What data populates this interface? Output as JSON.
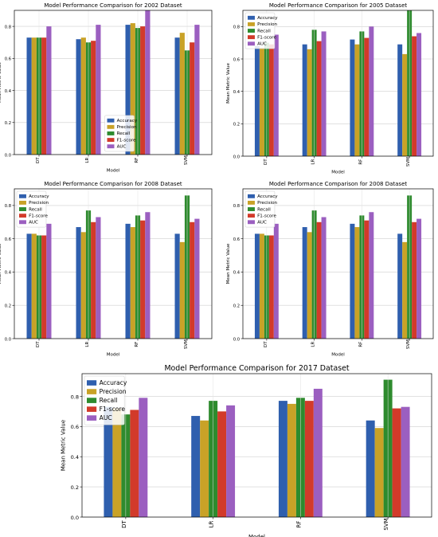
{
  "colors": {
    "Accuracy": "#2f5fae",
    "Precision": "#c9a227",
    "Recall": "#2e8b2e",
    "F1-score": "#d23a2a",
    "AUC": "#9b5fc0"
  },
  "chart_data": [
    {
      "type": "bar",
      "title": "Model Performance Comparison for 2002 Dataset",
      "xlabel": "Model",
      "ylabel": "Mean Metric Value",
      "categories": [
        "DT",
        "LR",
        "RF",
        "SVM"
      ],
      "series": [
        {
          "name": "Accuracy",
          "values": [
            0.73,
            0.72,
            0.81,
            0.73
          ]
        },
        {
          "name": "Precision",
          "values": [
            0.73,
            0.73,
            0.82,
            0.76
          ]
        },
        {
          "name": "Recall",
          "values": [
            0.73,
            0.7,
            0.79,
            0.65
          ]
        },
        {
          "name": "F1-score",
          "values": [
            0.73,
            0.71,
            0.8,
            0.7
          ]
        },
        {
          "name": "AUC",
          "values": [
            0.8,
            0.81,
            0.9,
            0.81
          ]
        }
      ],
      "ylim": [
        0,
        0.9
      ],
      "yticks": [
        0.0,
        0.2,
        0.4,
        0.6,
        0.8
      ],
      "legend": "bottom-center",
      "grid": true
    },
    {
      "type": "bar",
      "title": "Model Performance Comparison for 2005 Dataset",
      "xlabel": "Model",
      "ylabel": "Mean Metric Value",
      "categories": [
        "DT",
        "LR",
        "RF",
        "SVM"
      ],
      "series": [
        {
          "name": "Accuracy",
          "values": [
            0.68,
            0.69,
            0.72,
            0.69
          ]
        },
        {
          "name": "Precision",
          "values": [
            0.67,
            0.66,
            0.69,
            0.63
          ]
        },
        {
          "name": "Recall",
          "values": [
            0.7,
            0.78,
            0.77,
            0.9
          ]
        },
        {
          "name": "F1-score",
          "values": [
            0.69,
            0.71,
            0.73,
            0.74
          ]
        },
        {
          "name": "AUC",
          "values": [
            0.75,
            0.77,
            0.8,
            0.76
          ]
        }
      ],
      "ylim": [
        0,
        0.9
      ],
      "yticks": [
        0.0,
        0.2,
        0.4,
        0.6,
        0.8
      ],
      "legend": "top-left",
      "grid": true
    },
    {
      "type": "bar",
      "title": "Model Performance Comparison for 2008 Dataset",
      "xlabel": "Model",
      "ylabel": "Mean Metric Value",
      "categories": [
        "DT",
        "LR",
        "RF",
        "SVM"
      ],
      "series": [
        {
          "name": "Accuracy",
          "values": [
            0.63,
            0.67,
            0.69,
            0.63
          ]
        },
        {
          "name": "Precision",
          "values": [
            0.63,
            0.64,
            0.67,
            0.58
          ]
        },
        {
          "name": "Recall",
          "values": [
            0.62,
            0.77,
            0.74,
            0.86
          ]
        },
        {
          "name": "F1-score",
          "values": [
            0.62,
            0.7,
            0.71,
            0.7
          ]
        },
        {
          "name": "AUC",
          "values": [
            0.69,
            0.73,
            0.76,
            0.72
          ]
        }
      ],
      "ylim": [
        0,
        0.9
      ],
      "yticks": [
        0.0,
        0.2,
        0.4,
        0.6,
        0.8
      ],
      "legend": "top-left",
      "grid": true
    },
    {
      "type": "bar",
      "title": "Model Performance Comparison for 2008 Dataset",
      "xlabel": "Model",
      "ylabel": "Mean Metric Value",
      "categories": [
        "DT",
        "LR",
        "RF",
        "SVM"
      ],
      "series": [
        {
          "name": "Accuracy",
          "values": [
            0.63,
            0.67,
            0.69,
            0.63
          ]
        },
        {
          "name": "Precision",
          "values": [
            0.63,
            0.64,
            0.67,
            0.58
          ]
        },
        {
          "name": "Recall",
          "values": [
            0.62,
            0.77,
            0.74,
            0.86
          ]
        },
        {
          "name": "F1-score",
          "values": [
            0.62,
            0.7,
            0.71,
            0.7
          ]
        },
        {
          "name": "AUC",
          "values": [
            0.69,
            0.73,
            0.76,
            0.72
          ]
        }
      ],
      "ylim": [
        0,
        0.9
      ],
      "yticks": [
        0.0,
        0.2,
        0.4,
        0.6,
        0.8
      ],
      "legend": "top-left",
      "grid": true
    },
    {
      "type": "bar",
      "title": "Model Performance Comparison for 2017 Dataset",
      "xlabel": "Model",
      "ylabel": "Mean Metric Value",
      "categories": [
        "DT",
        "LR",
        "RF",
        "SVM"
      ],
      "series": [
        {
          "name": "Accuracy",
          "values": [
            0.73,
            0.67,
            0.77,
            0.64
          ]
        },
        {
          "name": "Precision",
          "values": [
            0.72,
            0.64,
            0.75,
            0.59
          ]
        },
        {
          "name": "Recall",
          "values": [
            0.68,
            0.77,
            0.79,
            0.91
          ]
        },
        {
          "name": "F1-score",
          "values": [
            0.71,
            0.7,
            0.77,
            0.72
          ]
        },
        {
          "name": "AUC",
          "values": [
            0.79,
            0.74,
            0.85,
            0.73
          ]
        }
      ],
      "ylim": [
        0,
        0.95
      ],
      "yticks": [
        0.0,
        0.2,
        0.4,
        0.6,
        0.8
      ],
      "legend": "top-left",
      "grid": true
    }
  ]
}
